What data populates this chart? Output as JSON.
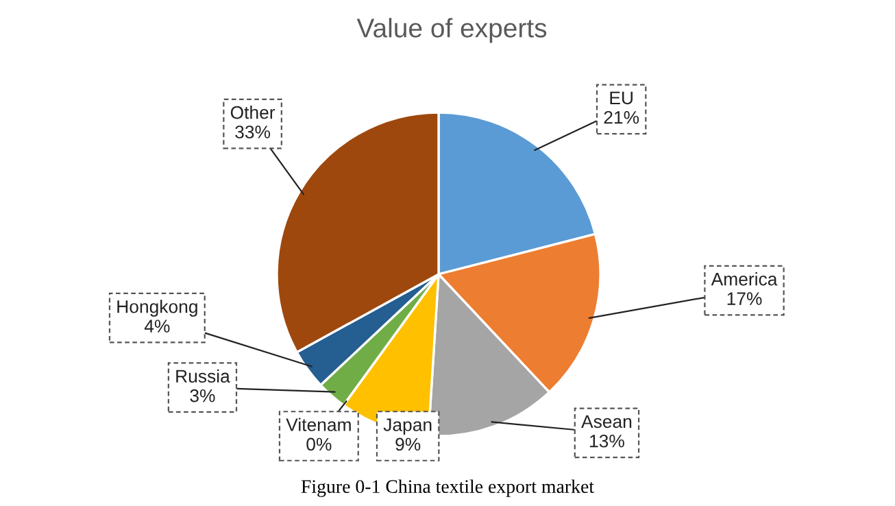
{
  "chart_data": {
    "type": "pie",
    "title": "Value of experts",
    "categories": [
      "EU",
      "America",
      "Asean",
      "Japan",
      "Vitenam",
      "Russia",
      "Hongkong",
      "Other"
    ],
    "values": [
      21,
      17,
      13,
      9,
      0,
      3,
      4,
      33
    ],
    "colors": [
      "#5b9bd5",
      "#ed7d31",
      "#a5a5a5",
      "#ffc000",
      "#4472c4",
      "#70ad47",
      "#255e91",
      "#9e480e"
    ],
    "value_labels": [
      "21%",
      "17%",
      "13%",
      "9%",
      "0%",
      "3%",
      "4%",
      "33%"
    ],
    "annotations": [
      "Figure 0-1 China textile export market"
    ]
  }
}
